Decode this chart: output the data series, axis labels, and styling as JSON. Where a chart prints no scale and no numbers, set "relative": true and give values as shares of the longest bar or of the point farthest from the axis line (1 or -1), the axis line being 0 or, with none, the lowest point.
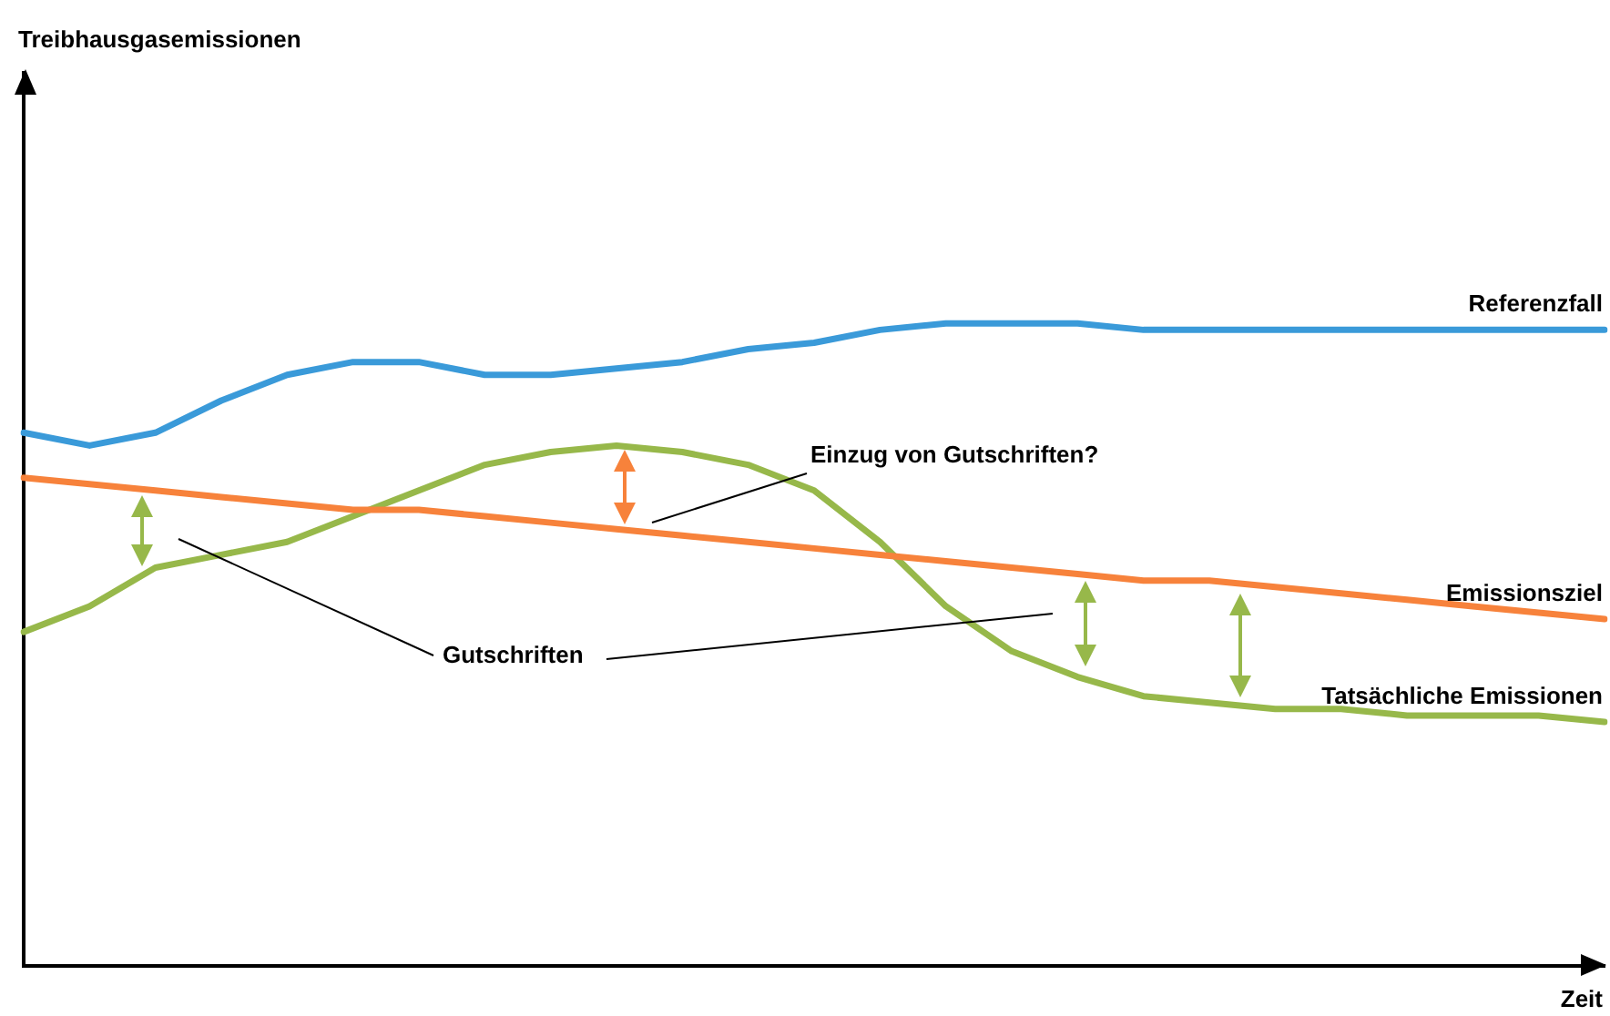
{
  "chart_data": {
    "type": "line",
    "relative": true,
    "xlabel": "Zeit",
    "annotations": [
      "Einzug von Gutschriften?",
      "Gutschriften",
      "Treibhausgasemissionen"
    ],
    "categories": [
      null,
      null,
      null,
      null,
      null,
      null,
      null,
      null,
      null,
      null,
      null,
      null,
      null,
      null,
      null,
      null,
      null,
      null,
      null,
      null,
      null,
      null,
      null,
      null,
      null
    ],
    "series": [
      {
        "name": "Referenzfall",
        "color": "#3a9ad9",
        "values": [
          0.83,
          0.81,
          0.83,
          0.88,
          0.92,
          0.94,
          0.94,
          0.92,
          0.92,
          0.93,
          0.94,
          0.96,
          0.97,
          0.99,
          1.0,
          1.0,
          1.0,
          0.99,
          0.99,
          0.99,
          0.99,
          0.99,
          0.99,
          0.99,
          0.99
        ]
      },
      {
        "name": "Emissionsziel",
        "color": "#f7823b",
        "values": [
          0.76,
          0.75,
          0.74,
          0.73,
          0.72,
          0.71,
          0.71,
          0.7,
          0.69,
          0.68,
          0.67,
          0.66,
          0.65,
          0.64,
          0.63,
          0.62,
          0.61,
          0.6,
          0.6,
          0.59,
          0.58,
          0.57,
          0.56,
          0.55,
          0.54
        ]
      },
      {
        "name": "Tatsächliche Emissionen",
        "color": "#97b84a",
        "values": [
          0.52,
          0.56,
          0.62,
          0.64,
          0.66,
          0.7,
          0.74,
          0.78,
          0.8,
          0.81,
          0.8,
          0.78,
          0.74,
          0.66,
          0.56,
          0.49,
          0.45,
          0.42,
          0.41,
          0.4,
          0.4,
          0.39,
          0.39,
          0.39,
          0.38
        ]
      }
    ],
    "grid": false,
    "legend": false,
    "marker": "none",
    "line_style": "solid"
  }
}
